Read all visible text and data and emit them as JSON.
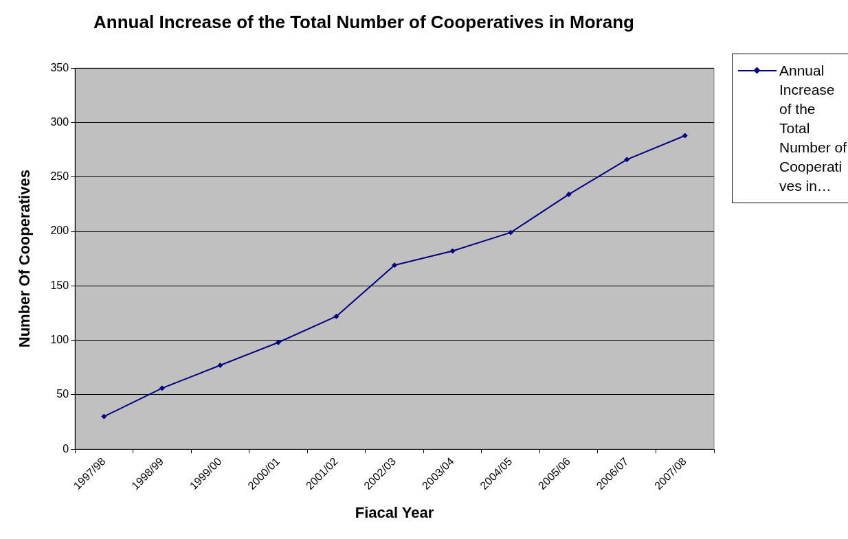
{
  "chart_data": {
    "type": "line",
    "title": "Annual Increase of the Total Number of Cooperatives in Morang",
    "xlabel": "Fiacal Year",
    "ylabel": "Number Of Cooperatives",
    "categories": [
      "1997/98",
      "1998/99",
      "1999/00",
      "2000/01",
      "2001/02",
      "2002/03",
      "2003/04",
      "2004/05",
      "2005/06",
      "2006/07",
      "2007/08"
    ],
    "series": [
      {
        "name": "Annual Increase of the Total Number of Cooperatives in…",
        "color": "#000080",
        "values": [
          30,
          56,
          77,
          98,
          122,
          169,
          182,
          199,
          234,
          266,
          288
        ]
      }
    ],
    "ylim": [
      0,
      350
    ],
    "yticks": [
      0,
      50,
      100,
      150,
      200,
      250,
      300,
      350
    ],
    "grid": "y",
    "legend": "right",
    "marker": "diamond",
    "line_style": "solid"
  }
}
